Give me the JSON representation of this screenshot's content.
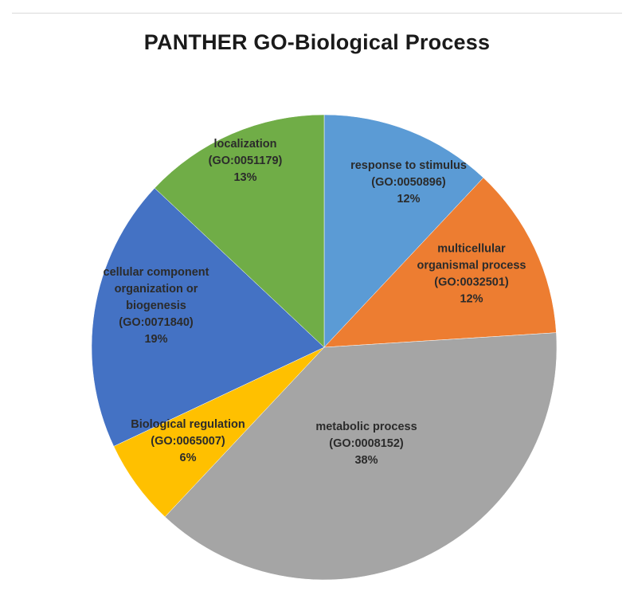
{
  "chart_data": {
    "type": "pie",
    "title": "PANTHER GO-Biological Process",
    "slices": [
      {
        "label": [
          "response to stimulus",
          "(GO:0050896)"
        ],
        "value": 12,
        "percent_label": "12%",
        "color": "#5b9bd5"
      },
      {
        "label": [
          "multicellular",
          "organismal process",
          "(GO:0032501)"
        ],
        "value": 12,
        "percent_label": "12%",
        "color": "#ed7d31"
      },
      {
        "label": [
          "metabolic process",
          "(GO:0008152)"
        ],
        "value": 38,
        "percent_label": "38%",
        "color": "#a5a5a5"
      },
      {
        "label": [
          "Biological regulation",
          "(GO:0065007)"
        ],
        "value": 6,
        "percent_label": "6%",
        "color": "#ffc000"
      },
      {
        "label": [
          "cellular component",
          "organization or",
          "biogenesis",
          "(GO:0071840)"
        ],
        "value": 19,
        "percent_label": "19%",
        "color": "#4472c4"
      },
      {
        "label": [
          "localization",
          "(GO:0051179)"
        ],
        "value": 13,
        "percent_label": "13%",
        "color": "#70ad47"
      }
    ],
    "start_angle": "12 o'clock",
    "direction": "clockwise"
  }
}
